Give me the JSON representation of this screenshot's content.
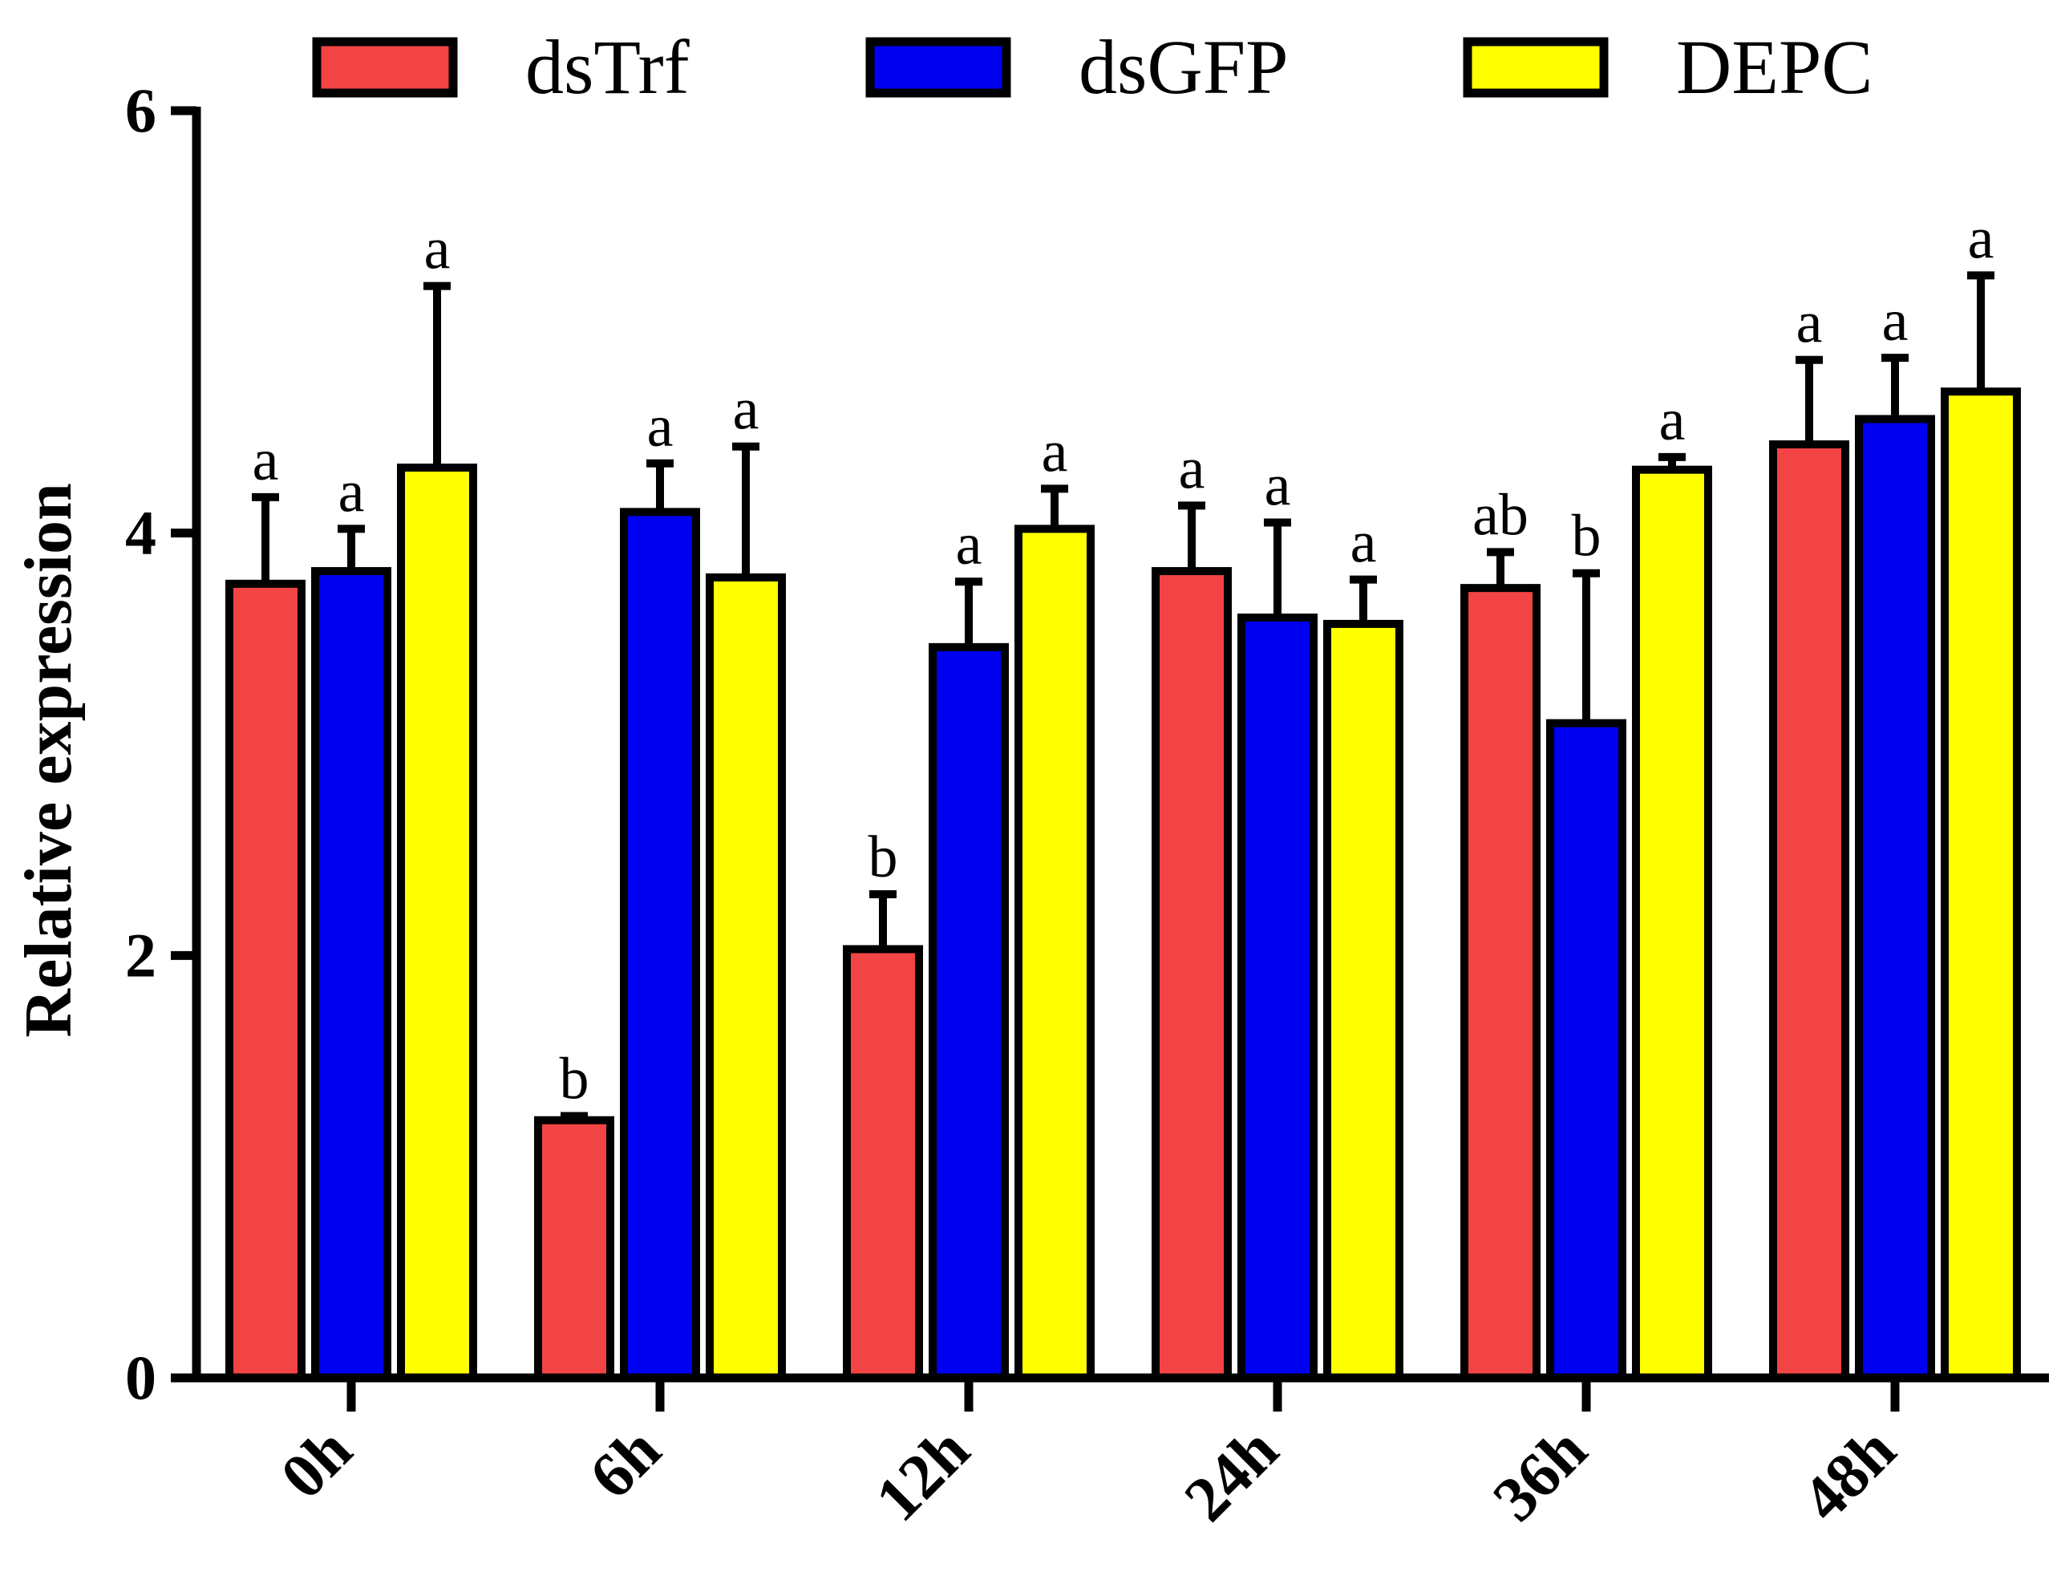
{
  "chart_data": {
    "type": "bar",
    "title": "",
    "xlabel": "",
    "ylabel": "Relative expression",
    "ylim": [
      0,
      6
    ],
    "yticks": [
      0,
      2,
      4,
      6
    ],
    "grid": false,
    "legend_position": "top",
    "categories": [
      "0h",
      "6h",
      "12h",
      "24h",
      "36h",
      "48h"
    ],
    "series": [
      {
        "name": "dsTrf",
        "color": "#F24444",
        "values": [
          3.76,
          1.22,
          2.03,
          3.82,
          3.74,
          4.42
        ],
        "errors": [
          0.41,
          0.02,
          0.26,
          0.31,
          0.17,
          0.4
        ],
        "labels": [
          "a",
          "b",
          "b",
          "a",
          "ab",
          "a"
        ]
      },
      {
        "name": "dsGFP",
        "color": "#0000F0",
        "values": [
          3.82,
          4.1,
          3.46,
          3.6,
          3.1,
          4.54
        ],
        "errors": [
          0.2,
          0.23,
          0.31,
          0.45,
          0.71,
          0.29
        ],
        "labels": [
          "a",
          "a",
          "a",
          "a",
          "b",
          "a"
        ]
      },
      {
        "name": "DEPC",
        "color": "#FFFF00",
        "values": [
          4.31,
          3.79,
          4.02,
          3.57,
          4.3,
          4.67
        ],
        "errors": [
          0.86,
          0.62,
          0.19,
          0.21,
          0.06,
          0.55
        ],
        "labels": [
          "a",
          "a",
          "a",
          "a",
          "a",
          "a"
        ]
      }
    ]
  }
}
